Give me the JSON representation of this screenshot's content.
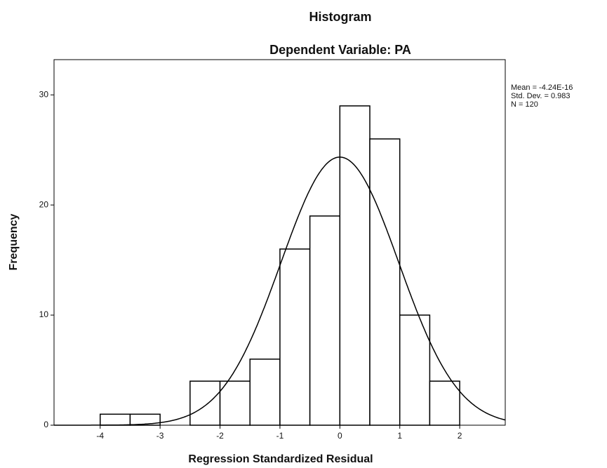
{
  "chart_data": {
    "type": "histogram",
    "title": "Histogram",
    "subtitle": "Dependent Variable: PA",
    "x_label": "Regression Standardized Residual",
    "y_label": "Frequency",
    "bins": [
      -4,
      -3.5,
      -3,
      -2.5,
      -2,
      -1.5,
      -1,
      -0.5,
      0,
      0.5,
      1,
      1.5,
      2
    ],
    "values": [
      1,
      1,
      0,
      4,
      4,
      6,
      16,
      19,
      29,
      26,
      10,
      4
    ],
    "color": "#ffffff",
    "xlim": [
      -4.77,
      2.76
    ],
    "xticks": [
      -4,
      -3,
      -2,
      -1,
      0,
      1,
      2
    ],
    "ylim": [
      0,
      33.2
    ],
    "yticks": [
      0,
      10,
      20,
      30
    ],
    "stats": [
      {
        "value": -4.24e-16,
        "label": "Mean = -4.24E-16"
      },
      {
        "value": 0.983,
        "label": "Std. Dev. = 0.983"
      },
      {
        "value": 120,
        "label": "N = 120"
      }
    ]
  }
}
